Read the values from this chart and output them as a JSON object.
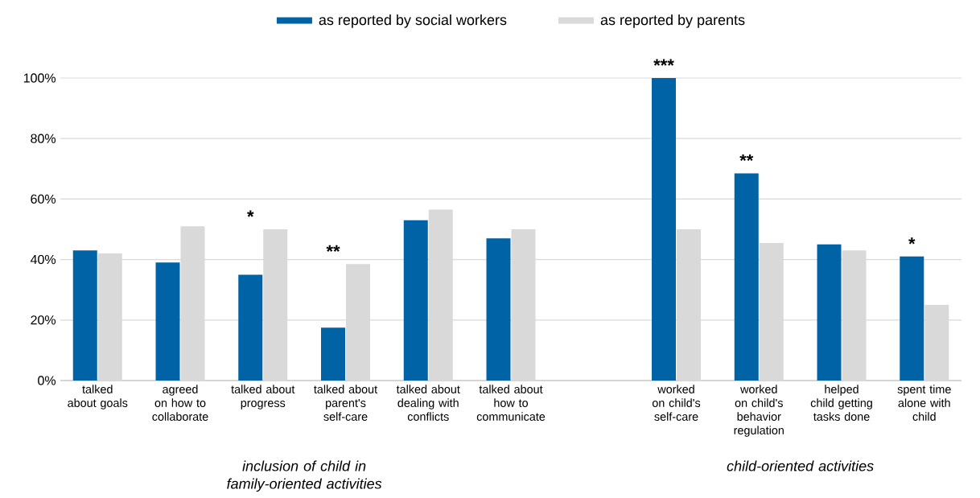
{
  "chart_data": {
    "type": "bar",
    "categories": [
      "talked about goals",
      "agreed on how to collaborate",
      "talked about progress",
      "talked about parent's self-care",
      "talked about dealing with conflicts",
      "talked about how to communicate",
      null,
      "worked on child's self-care",
      "worked on child's behavior regulation",
      "helped child getting tasks done",
      "spent time alone with child"
    ],
    "series": [
      {
        "name": "as reported by social workers",
        "color": "#0063a6",
        "values": [
          43,
          39,
          35,
          17.5,
          53,
          47,
          null,
          100,
          68.5,
          45,
          41
        ]
      },
      {
        "name": "as reported by parents",
        "color": "#d9d9d9",
        "values": [
          42,
          51,
          50,
          38.5,
          56.5,
          50,
          null,
          50,
          45.5,
          43,
          25
        ]
      }
    ],
    "ylim": [
      0,
      100
    ],
    "yticks": [
      {
        "value": 0,
        "label": "0%"
      },
      {
        "value": 20,
        "label": "20%"
      },
      {
        "value": 40,
        "label": "40%"
      },
      {
        "value": 60,
        "label": "60%"
      },
      {
        "value": 80,
        "label": "80%"
      },
      {
        "value": 100,
        "label": "100%"
      }
    ],
    "grid": "y",
    "legend": "top",
    "annotations": [
      {
        "text": "*",
        "x": "talked about progress",
        "y": 50
      },
      {
        "text": "**",
        "x": "talked about parent's self-care",
        "y": 38.5
      },
      {
        "text": "***",
        "x": "worked on child's self-care",
        "y": 100
      },
      {
        "text": "**",
        "x": "worked on child's behavior regulation",
        "y": 68.5
      },
      {
        "text": "*",
        "x": "spent time alone with child",
        "y": 41
      },
      "inclusion of child in family-oriented activities",
      "child-oriented activities"
    ]
  }
}
